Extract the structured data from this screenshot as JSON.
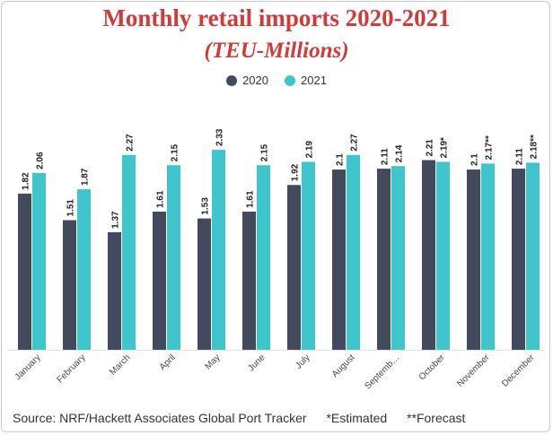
{
  "chart_data": {
    "type": "bar",
    "title": "Monthly retail imports 2020-2021",
    "subtitle": "(TEU-Millions)",
    "categories": [
      "January",
      "February",
      "March",
      "April",
      "May",
      "June",
      "July",
      "August",
      "Septemb…",
      "October",
      "November",
      "December"
    ],
    "series": [
      {
        "name": "2020",
        "color": "#434a5e",
        "values": [
          1.82,
          1.51,
          1.37,
          1.61,
          1.53,
          1.61,
          1.92,
          2.1,
          2.11,
          2.21,
          2.1,
          2.11
        ],
        "labels": [
          "1.82",
          "1.51",
          "1.37",
          "1.61",
          "1.53",
          "1.61",
          "1.92",
          "2.1",
          "2.11",
          "2.21",
          "2.1",
          "2.11"
        ]
      },
      {
        "name": "2021",
        "color": "#3ec6cc",
        "values": [
          2.06,
          1.87,
          2.27,
          2.15,
          2.33,
          2.15,
          2.19,
          2.27,
          2.14,
          2.19,
          2.17,
          2.18
        ],
        "labels": [
          "2.06",
          "1.87",
          "2.27",
          "2.15",
          "2.33",
          "2.15",
          "2.19",
          "2.27",
          "2.14",
          "2.19*",
          "2.17**",
          "2.18**"
        ]
      }
    ],
    "ylim": [
      0,
      2.33
    ],
    "grid": false,
    "legend_position": "top-center"
  },
  "footer": {
    "source": "Source: NRF/Hackett Associates Global Port Tracker",
    "estimated": "*Estimated",
    "forecast": "**Forecast"
  }
}
